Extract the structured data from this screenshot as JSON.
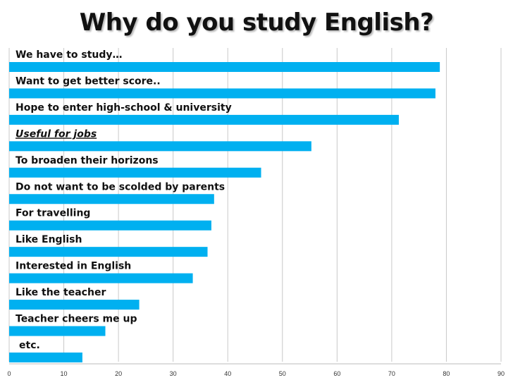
{
  "page": {
    "title": "Why do you study English?"
  },
  "chart_data": {
    "type": "bar",
    "orientation": "horizontal",
    "title": "Why do you study English?",
    "categories": [
      "We have to study…",
      "Want to get better score..",
      "Hope to enter high-school & university",
      "Useful for jobs",
      "To broaden their horizons",
      "Do not want to be scolded by parents",
      "For travelling",
      "Like English",
      "Interested in English",
      "Like the teacher",
      "Teacher cheers me up",
      "etc."
    ],
    "values": [
      78.8,
      78,
      71.3,
      55.3,
      46.1,
      37.5,
      37,
      36.3,
      33.6,
      23.8,
      17.6,
      13.4
    ],
    "xlim": [
      0,
      90
    ],
    "xticks": [
      "0",
      "10",
      "20",
      "30",
      "40",
      "50",
      "60",
      "70",
      "80",
      "90"
    ],
    "xlabel": "",
    "ylabel": "",
    "grid": "vertical",
    "legend": "none",
    "bar_color": "#00b0f0",
    "italic_underlined_category": "Useful for jobs"
  }
}
